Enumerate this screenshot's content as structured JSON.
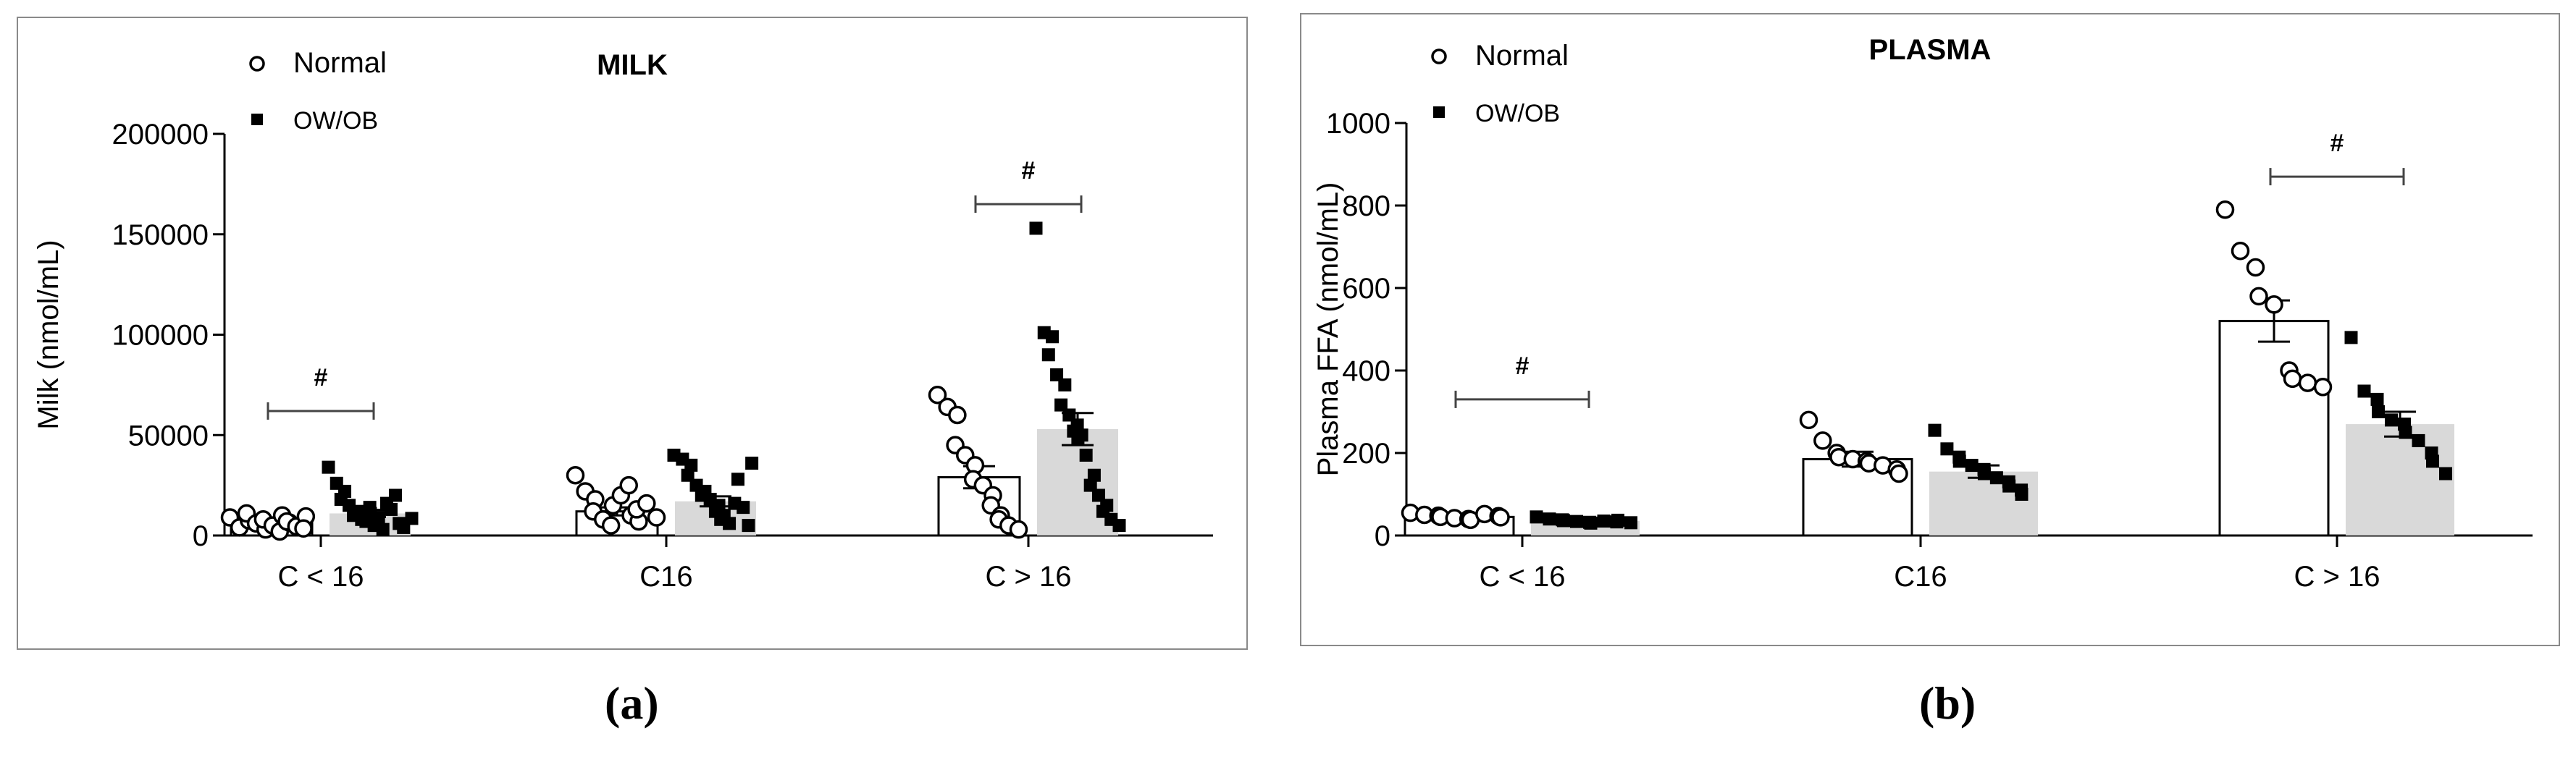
{
  "chart_data": [
    {
      "type": "bar",
      "panel": "a",
      "title": "MILK",
      "ylabel": "Milk (nmol/mL)",
      "xlabel": "",
      "ylim": [
        0,
        200000
      ],
      "yticks": [
        0,
        50000,
        100000,
        150000,
        200000
      ],
      "ytick_labels": [
        "0",
        "50000",
        "100000",
        "150000",
        "200000"
      ],
      "categories": [
        "C < 16",
        "C16",
        "C > 16"
      ],
      "legend": [
        "Normal",
        "OW/OB"
      ],
      "legend_position": "top-left",
      "series": [
        {
          "name": "Normal",
          "values": [
            7000,
            12000,
            29000
          ],
          "sem": [
            1200,
            2000,
            5500
          ],
          "points": [
            [
              9000,
              4000,
              7500,
              11000,
              6000,
              3000,
              8000,
              5000,
              10000,
              2000,
              6500,
              7000,
              4500,
              9500,
              3500
            ],
            [
              30000,
              22000,
              18000,
              12000,
              8000,
              15000,
              5000,
              20000,
              10000,
              25000,
              7000,
              13000,
              16000,
              9000
            ],
            [
              70000,
              64000,
              60000,
              45000,
              40000,
              35000,
              28000,
              25000,
              20000,
              15000,
              10000,
              8000,
              5000,
              3000
            ]
          ]
        },
        {
          "name": "OW/OB",
          "values": [
            11000,
            17000,
            53000
          ],
          "sem": [
            1800,
            2500,
            8000
          ],
          "points": [
            [
              34000,
              26000,
              22000,
              18000,
              15000,
              12000,
              10000,
              8000,
              14000,
              7000,
              5000,
              11000,
              9000,
              16000,
              3000,
              13000,
              6000,
              20000,
              4000,
              8500
            ],
            [
              40000,
              38000,
              35000,
              30000,
              25000,
              22000,
              20000,
              18000,
              15000,
              12000,
              10000,
              8000,
              6000,
              28000,
              16000,
              14000,
              36000,
              5000
            ],
            [
              153000,
              101000,
              99000,
              90000,
              80000,
              75000,
              65000,
              60000,
              55000,
              52000,
              50000,
              48000,
              40000,
              30000,
              25000,
              20000,
              15000,
              12000,
              8000,
              5000
            ]
          ]
        }
      ],
      "annotations": [
        {
          "text": "#",
          "category": "C < 16",
          "y": 62000
        },
        {
          "text": "#",
          "category": "C > 16",
          "y": 165000
        }
      ]
    },
    {
      "type": "bar",
      "panel": "b",
      "title": "PLASMA",
      "ylabel": "Plasma FFA (nmol/mL)",
      "xlabel": "",
      "ylim": [
        0,
        1000
      ],
      "yticks": [
        0,
        200,
        400,
        600,
        800,
        1000
      ],
      "ytick_labels": [
        "0",
        "200",
        "400",
        "600",
        "800",
        "1000"
      ],
      "categories": [
        "C < 16",
        "C16",
        "C > 16"
      ],
      "legend": [
        "Normal",
        "OW/OB"
      ],
      "legend_position": "top-left",
      "series": [
        {
          "name": "Normal",
          "values": [
            45,
            185,
            520
          ],
          "sem": [
            5,
            18,
            50
          ],
          "points": [
            [
              55,
              50,
              48,
              45,
              42,
              40,
              38,
              52,
              47,
              44
            ],
            [
              280,
              230,
              200,
              190,
              185,
              180,
              175,
              170,
              160,
              150
            ],
            [
              790,
              690,
              650,
              580,
              560,
              400,
              380,
              370,
              360
            ]
          ]
        },
        {
          "name": "OW/OB",
          "values": [
            35,
            155,
            270
          ],
          "sem": [
            3,
            15,
            30
          ],
          "points": [
            [
              45,
              40,
              38,
              36,
              34,
              32,
              30,
              35,
              33,
              37,
              31
            ],
            [
              255,
              210,
              190,
              180,
              170,
              160,
              150,
              140,
              130,
              120,
              110,
              100
            ],
            [
              480,
              350,
              330,
              300,
              280,
              270,
              250,
              230,
              200,
              180,
              150
            ]
          ]
        }
      ],
      "annotations": [
        {
          "text": "#",
          "category": "C < 16",
          "y": 330
        },
        {
          "text": "#",
          "category": "C > 16",
          "y": 870
        }
      ]
    }
  ],
  "sub_labels": [
    "(a)",
    "(b)"
  ],
  "colors": {
    "normal_bar": "#ffffff",
    "owob_bar": "#d9d9d9",
    "stroke": "#000000",
    "border": "#8a8a8a"
  }
}
